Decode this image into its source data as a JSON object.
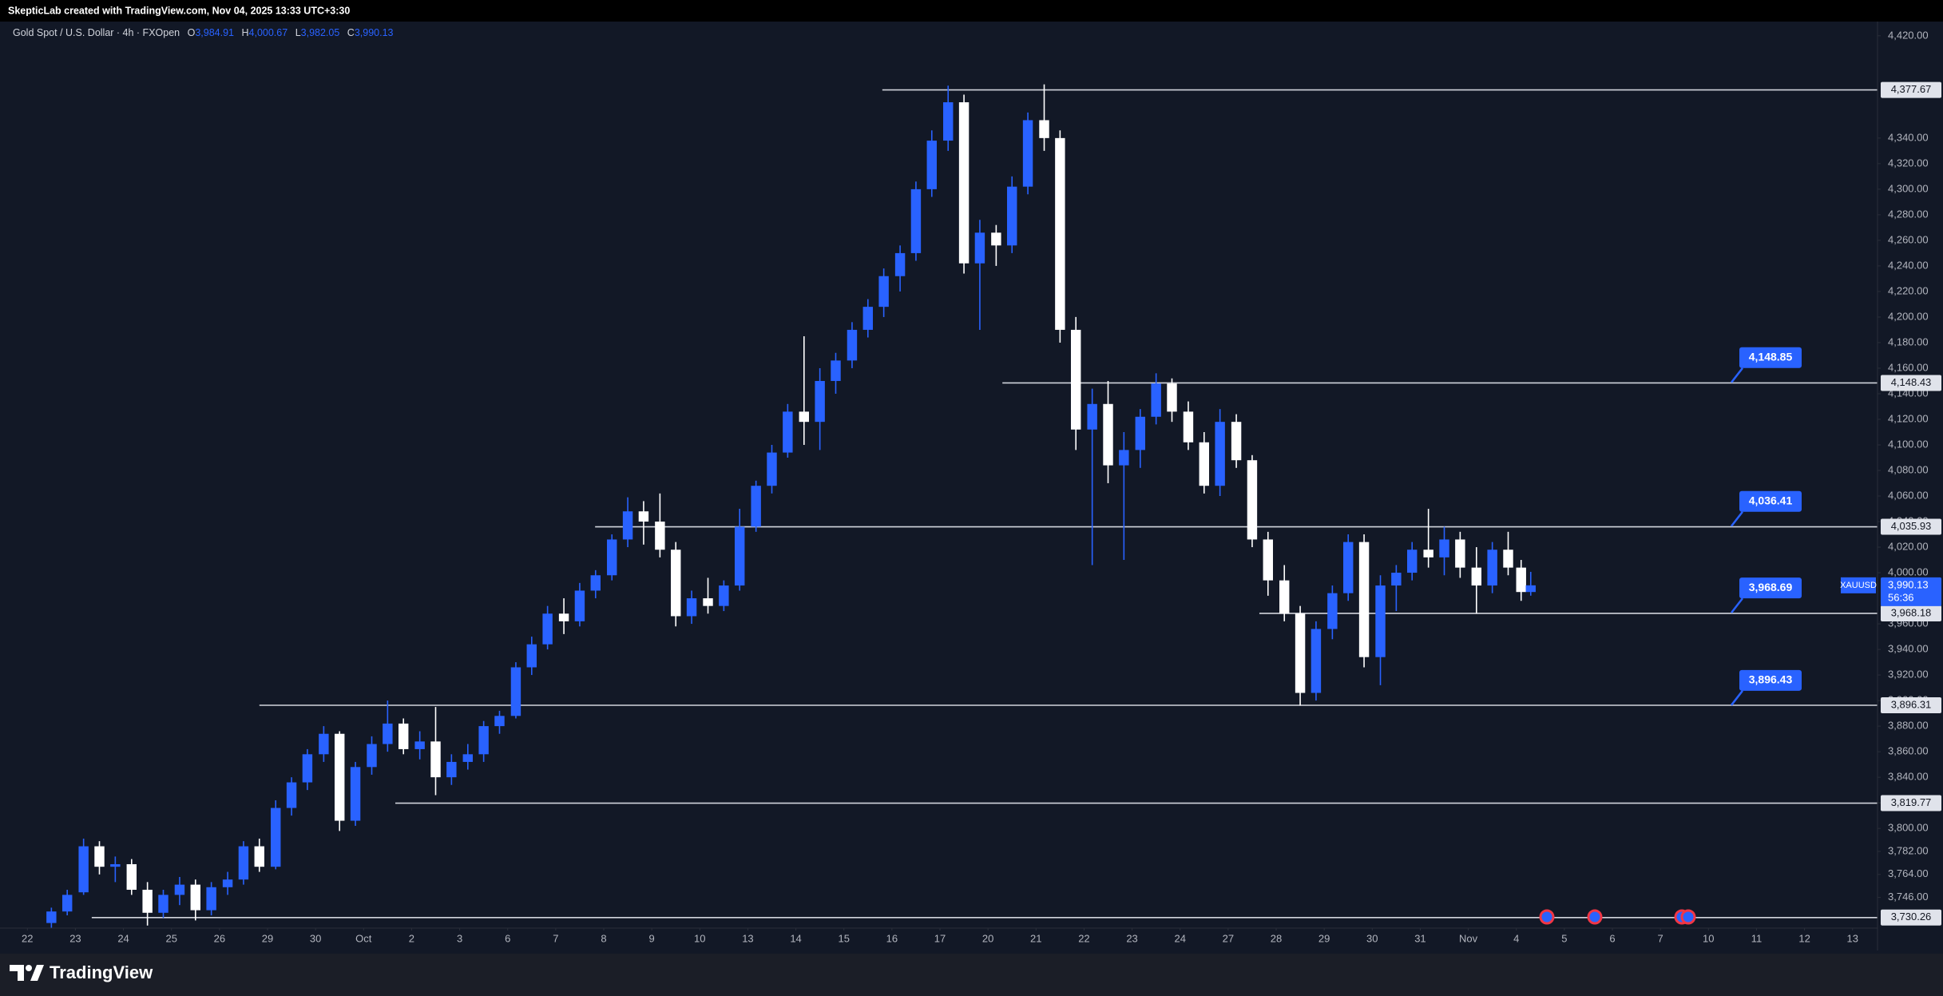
{
  "header": {
    "attribution": "SkepticLab created with TradingView.com, Nov 04, 2025 13:33 UTC+3:30"
  },
  "footer": {
    "brand": "TradingView"
  },
  "chart_data": {
    "type": "candlestick",
    "title": "Gold Spot / U.S. Dollar · 4h · FXOpen",
    "ohlc_legend": [
      {
        "key": "O",
        "label": "3,984.91"
      },
      {
        "key": "H",
        "label": "4,000.67"
      },
      {
        "key": "L",
        "label": "3,982.05"
      },
      {
        "key": "C",
        "label": "3,990.13"
      }
    ],
    "up_color": "#2962ff",
    "down_color": "#ffffff",
    "grid": false,
    "x": [
      0.5,
      0.83,
      1.17,
      1.5,
      1.83,
      2.17,
      2.5,
      2.83,
      3.17,
      3.5,
      3.83,
      4.17,
      4.5,
      4.83,
      5.17,
      5.5,
      5.83,
      6.17,
      6.5,
      6.83,
      7.17,
      7.5,
      7.83,
      8.17,
      8.5,
      8.83,
      9.17,
      9.5,
      9.83,
      10.17,
      10.5,
      10.83,
      11.17,
      11.5,
      11.83,
      12.17,
      12.5,
      12.83,
      13.17,
      13.5,
      13.83,
      14.17,
      14.5,
      14.83,
      15.17,
      15.5,
      15.83,
      16.17,
      16.5,
      16.83,
      17.17,
      17.5,
      17.83,
      18.17,
      18.5,
      18.83,
      19.17,
      19.5,
      19.83,
      20.17,
      20.5,
      20.83,
      21.17,
      21.5,
      21.83,
      22.17,
      22.5,
      22.83,
      23.17,
      23.5,
      23.83,
      24.17,
      24.5,
      24.83,
      25.17,
      25.5,
      25.83,
      26.17,
      26.5,
      26.83,
      27.17,
      27.5,
      27.83,
      28.17,
      28.5,
      28.83,
      29.17,
      29.5,
      29.83,
      30.17,
      30.5,
      30.83,
      31.1,
      31.3
    ],
    "open": [
      3726,
      3735,
      3750,
      3786,
      3770,
      3772,
      3752,
      3734,
      3748,
      3756,
      3736,
      3754,
      3760,
      3786,
      3770,
      3816,
      3836,
      3858,
      3874,
      3806,
      3848,
      3866,
      3882,
      3862,
      3868,
      3840,
      3852,
      3858,
      3880,
      3888,
      3926,
      3944,
      3968,
      3962,
      3986,
      3998,
      4026,
      4048,
      4040,
      4018,
      3966,
      3980,
      3974,
      3990,
      4036,
      4068,
      4094,
      4126,
      4118,
      4150,
      4166,
      4190,
      4208,
      4232,
      4250,
      4300,
      4338,
      4368,
      4242,
      4266,
      4256,
      4302,
      4354,
      4340,
      4190,
      4112,
      4132,
      4084,
      4096,
      4122,
      4148,
      4126,
      4102,
      4068,
      4118,
      4088,
      4026,
      3994,
      3968,
      3906,
      3956,
      3984,
      4024,
      3934,
      3990,
      4000,
      4018,
      4012,
      4026,
      4004,
      3990,
      4018,
      4004,
      3984.91
    ],
    "high": [
      3738,
      3752,
      3792,
      3790,
      3778,
      3776,
      3758,
      3752,
      3762,
      3760,
      3758,
      3766,
      3790,
      3792,
      3822,
      3840,
      3862,
      3880,
      3876,
      3852,
      3872,
      3900,
      3886,
      3876,
      3895,
      3858,
      3866,
      3884,
      3892,
      3930,
      3950,
      3974,
      3980,
      3992,
      4002,
      4030,
      4059,
      4056,
      4062,
      4024,
      3986,
      3996,
      3994,
      4050,
      4072,
      4100,
      4132,
      4185,
      4160,
      4172,
      4196,
      4214,
      4238,
      4256,
      4306,
      4346,
      4381,
      4374,
      4276,
      4272,
      4310,
      4360,
      4382,
      4346,
      4200,
      4144,
      4150,
      4110,
      4128,
      4156,
      4152,
      4134,
      4110,
      4128,
      4124,
      4092,
      4032,
      4006,
      3974,
      3962,
      3990,
      4030,
      4030,
      3998,
      4006,
      4024,
      4050,
      4036,
      4032,
      4020,
      4024,
      4032,
      4010,
      4000.67
    ],
    "low": [
      3722,
      3732,
      3748,
      3764,
      3758,
      3748,
      3724,
      3730,
      3740,
      3728,
      3732,
      3748,
      3756,
      3766,
      3768,
      3810,
      3830,
      3852,
      3798,
      3802,
      3842,
      3860,
      3858,
      3854,
      3826,
      3834,
      3846,
      3852,
      3874,
      3886,
      3920,
      3940,
      3952,
      3958,
      3980,
      3994,
      4020,
      4022,
      4012,
      3958,
      3960,
      3968,
      3970,
      3986,
      4032,
      4062,
      4090,
      4100,
      4096,
      4140,
      4160,
      4184,
      4200,
      4220,
      4244,
      4294,
      4330,
      4234,
      4190,
      4240,
      4250,
      4296,
      4330,
      4180,
      4096,
      4006,
      4070,
      4010,
      4082,
      4116,
      4118,
      4096,
      4062,
      4060,
      4082,
      4020,
      3982,
      3962,
      3896,
      3900,
      3948,
      3978,
      3926,
      3912,
      3970,
      3994,
      4004,
      3998,
      3996,
      3968,
      3984,
      3998,
      3978,
      3982.05
    ],
    "close": [
      3735,
      3748,
      3786,
      3770,
      3772,
      3752,
      3734,
      3748,
      3756,
      3736,
      3754,
      3760,
      3786,
      3770,
      3816,
      3836,
      3858,
      3874,
      3806,
      3848,
      3866,
      3882,
      3862,
      3868,
      3840,
      3852,
      3858,
      3880,
      3888,
      3926,
      3944,
      3968,
      3962,
      3986,
      3998,
      4026,
      4048,
      4040,
      4018,
      3966,
      3980,
      3974,
      3990,
      4036,
      4068,
      4094,
      4126,
      4118,
      4150,
      4166,
      4190,
      4208,
      4232,
      4250,
      4300,
      4338,
      4368,
      4242,
      4266,
      4256,
      4302,
      4354,
      4340,
      4190,
      4112,
      4132,
      4084,
      4096,
      4122,
      4148,
      4126,
      4102,
      4068,
      4118,
      4088,
      4026,
      3994,
      3968,
      3906,
      3956,
      3984,
      4024,
      3934,
      3990,
      4000,
      4018,
      4012,
      4026,
      4004,
      3990,
      4018,
      4004,
      3984.91,
      3990.13
    ],
    "xlim": [
      -0.57,
      38.52
    ],
    "xticks": [
      {
        "value": 0,
        "label": "22"
      },
      {
        "value": 1,
        "label": "23"
      },
      {
        "value": 2,
        "label": "24"
      },
      {
        "value": 3,
        "label": "25"
      },
      {
        "value": 4,
        "label": "26"
      },
      {
        "value": 5,
        "label": "29"
      },
      {
        "value": 6,
        "label": "30"
      },
      {
        "value": 7,
        "label": "Oct"
      },
      {
        "value": 8,
        "label": "2"
      },
      {
        "value": 9,
        "label": "3"
      },
      {
        "value": 10,
        "label": "6"
      },
      {
        "value": 11,
        "label": "7"
      },
      {
        "value": 12,
        "label": "8"
      },
      {
        "value": 13,
        "label": "9"
      },
      {
        "value": 14,
        "label": "10"
      },
      {
        "value": 15,
        "label": "13"
      },
      {
        "value": 16,
        "label": "14"
      },
      {
        "value": 17,
        "label": "15"
      },
      {
        "value": 18,
        "label": "16"
      },
      {
        "value": 19,
        "label": "17"
      },
      {
        "value": 20,
        "label": "20"
      },
      {
        "value": 21,
        "label": "21"
      },
      {
        "value": 22,
        "label": "22"
      },
      {
        "value": 23,
        "label": "23"
      },
      {
        "value": 24,
        "label": "24"
      },
      {
        "value": 25,
        "label": "27"
      },
      {
        "value": 26,
        "label": "28"
      },
      {
        "value": 27,
        "label": "29"
      },
      {
        "value": 28,
        "label": "30"
      },
      {
        "value": 29,
        "label": "31"
      },
      {
        "value": 30,
        "label": "Nov"
      },
      {
        "value": 31,
        "label": "4"
      },
      {
        "value": 32,
        "label": "5"
      },
      {
        "value": 33,
        "label": "6"
      },
      {
        "value": 34,
        "label": "7"
      },
      {
        "value": 35,
        "label": "10"
      },
      {
        "value": 36,
        "label": "11"
      },
      {
        "value": 37,
        "label": "12"
      },
      {
        "value": 38,
        "label": "13"
      }
    ],
    "ylim": [
      3722,
      4448
    ],
    "yticks": [
      {
        "value": 4420,
        "label": "4,420.00"
      },
      {
        "value": 4340,
        "label": "4,340.00"
      },
      {
        "value": 4320,
        "label": "4,320.00"
      },
      {
        "value": 4300,
        "label": "4,300.00"
      },
      {
        "value": 4280,
        "label": "4,280.00"
      },
      {
        "value": 4260,
        "label": "4,260.00"
      },
      {
        "value": 4240,
        "label": "4,240.00"
      },
      {
        "value": 4220,
        "label": "4,220.00"
      },
      {
        "value": 4200,
        "label": "4,200.00"
      },
      {
        "value": 4180,
        "label": "4,180.00"
      },
      {
        "value": 4160,
        "label": "4,160.00"
      },
      {
        "value": 4140,
        "label": "4,140.00"
      },
      {
        "value": 4120,
        "label": "4,120.00"
      },
      {
        "value": 4100,
        "label": "4,100.00"
      },
      {
        "value": 4080,
        "label": "4,080.00"
      },
      {
        "value": 4060,
        "label": "4,060.00"
      },
      {
        "value": 4040,
        "label": "4,040.00"
      },
      {
        "value": 4020,
        "label": "4,020.00"
      },
      {
        "value": 4000,
        "label": "4,000.00"
      },
      {
        "value": 3960,
        "label": "3,960.00"
      },
      {
        "value": 3940,
        "label": "3,940.00"
      },
      {
        "value": 3920,
        "label": "3,920.00"
      },
      {
        "value": 3900,
        "label": "3,900.00"
      },
      {
        "value": 3880,
        "label": "3,880.00"
      },
      {
        "value": 3860,
        "label": "3,860.00"
      },
      {
        "value": 3840,
        "label": "3,840.00"
      },
      {
        "value": 3820,
        "label": "3,820.00"
      },
      {
        "value": 3800,
        "label": "3,800.00"
      },
      {
        "value": 3782,
        "label": "3,782.00"
      },
      {
        "value": 3764,
        "label": "3,764.00"
      },
      {
        "value": 3746,
        "label": "3,746.00"
      }
    ],
    "levels": [
      {
        "value": 4377.67,
        "label": "4,377.67",
        "x_start": 17.8
      },
      {
        "value": 4148.43,
        "label": "4,148.43",
        "x_start": 20.3
      },
      {
        "value": 4035.93,
        "label": "4,035.93",
        "x_start": 11.82
      },
      {
        "value": 3968.18,
        "label": "3,968.18",
        "x_start": 25.65
      },
      {
        "value": 3896.31,
        "label": "3,896.31",
        "x_start": 4.83
      },
      {
        "value": 3819.77,
        "label": "3,819.77",
        "x_start": 7.66
      },
      {
        "value": 3730.26,
        "label": "3,730.26",
        "x_start": 1.34
      }
    ],
    "callouts": [
      {
        "value": 4148.85,
        "label": "4,148.85"
      },
      {
        "value": 4036.41,
        "label": "4,036.41"
      },
      {
        "value": 3968.69,
        "label": "3,968.69"
      },
      {
        "value": 3896.43,
        "label": "3,896.43"
      }
    ],
    "last_price": {
      "symbol": "XAUUSD",
      "value": 3990.13,
      "label": "3,990.13",
      "countdown": "56:36"
    }
  }
}
